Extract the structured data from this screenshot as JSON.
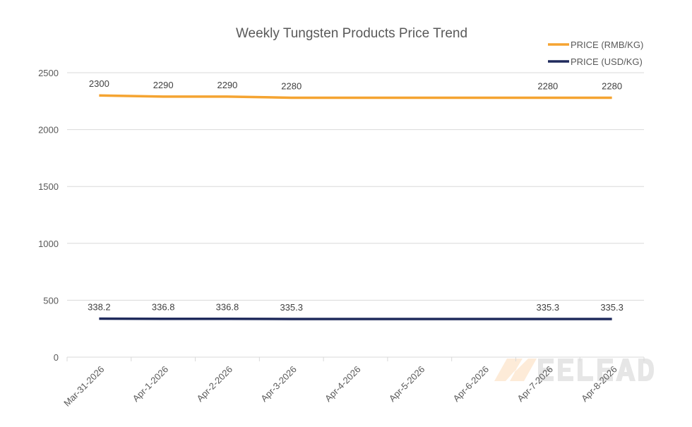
{
  "chart_data": {
    "type": "line",
    "title": "Weekly Tungsten Products Price Trend",
    "xlabel": "",
    "ylabel": "",
    "ylim": [
      0,
      2500
    ],
    "yticks": [
      0,
      500,
      1000,
      1500,
      2000,
      2500
    ],
    "grid": true,
    "legend_placement": "top-right",
    "categories": [
      "Mar-31-2026",
      "Apr-1-2026",
      "Apr-2-2026",
      "Apr-3-2026",
      "Apr-4-2026",
      "Apr-5-2026",
      "Apr-6-2026",
      "Apr-7-2026",
      "Apr-8-2026"
    ],
    "series": [
      {
        "name": "PRICE (RMB/KG)",
        "color": "#F5A431",
        "values": [
          2300,
          2290,
          2290,
          2280,
          2280,
          2280,
          2280,
          2280,
          2280
        ],
        "data_labels": [
          "2300",
          "2290",
          "2290",
          "2280",
          "",
          "",
          "",
          "2280",
          "2280"
        ]
      },
      {
        "name": "PRICE (USD/KG)",
        "color": "#1F2A5C",
        "values": [
          338.2,
          336.8,
          336.8,
          335.3,
          335.3,
          335.3,
          335.3,
          335.3,
          335.3
        ],
        "data_labels": [
          "338.2",
          "336.8",
          "336.8",
          "335.3",
          "",
          "",
          "",
          "335.3",
          "335.3"
        ]
      }
    ]
  },
  "watermark": "MEELEAD"
}
